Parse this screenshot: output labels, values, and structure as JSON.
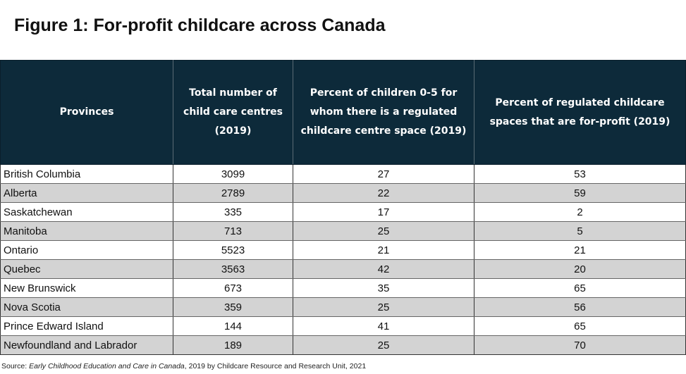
{
  "title": "Figure 1: For-profit childcare across Canada",
  "chart_data": {
    "type": "table",
    "title": "Figure 1: For-profit childcare across Canada",
    "columns": [
      "Provinces",
      "Total number of child care centres (2019)",
      "Percent of children 0-5 for whom there is a regulated childcare centre space (2019)",
      "Percent of regulated childcare spaces that are for-profit (2019)"
    ],
    "rows": [
      [
        "British Columbia",
        "3099",
        "27",
        "53"
      ],
      [
        "Alberta",
        "2789",
        "22",
        "59"
      ],
      [
        "Saskatchewan",
        "335",
        "17",
        "2"
      ],
      [
        "Manitoba",
        "713",
        "25",
        "5"
      ],
      [
        "Ontario",
        "5523",
        "21",
        "21"
      ],
      [
        "Quebec",
        "3563",
        "42",
        "20"
      ],
      [
        "New Brunswick",
        "673",
        "35",
        "65"
      ],
      [
        "Nova Scotia",
        "359",
        "25",
        "56"
      ],
      [
        "Prince Edward Island",
        "144",
        "41",
        "65"
      ],
      [
        "Newfoundland and Labrador",
        "189",
        "25",
        "70"
      ]
    ]
  },
  "header_lines": [
    [
      "Provinces"
    ],
    [
      "Total number of",
      "child care centres",
      "(2019)"
    ],
    [
      "Percent of children 0-5 for",
      "whom there is a regulated",
      "childcare centre space (2019)"
    ],
    [
      "Percent of regulated childcare",
      "spaces that are for-profit (2019)"
    ]
  ],
  "source": {
    "prefix": "Source: ",
    "work": "Early Childhood Education and Care in Canada",
    "suffix": ", 2019 by Childcare Resource and Research Unit, 2021"
  },
  "colors": {
    "header_bg": "#0d2a3a",
    "header_text": "#ffffff",
    "alt_row_bg": "#d3d3d3"
  }
}
